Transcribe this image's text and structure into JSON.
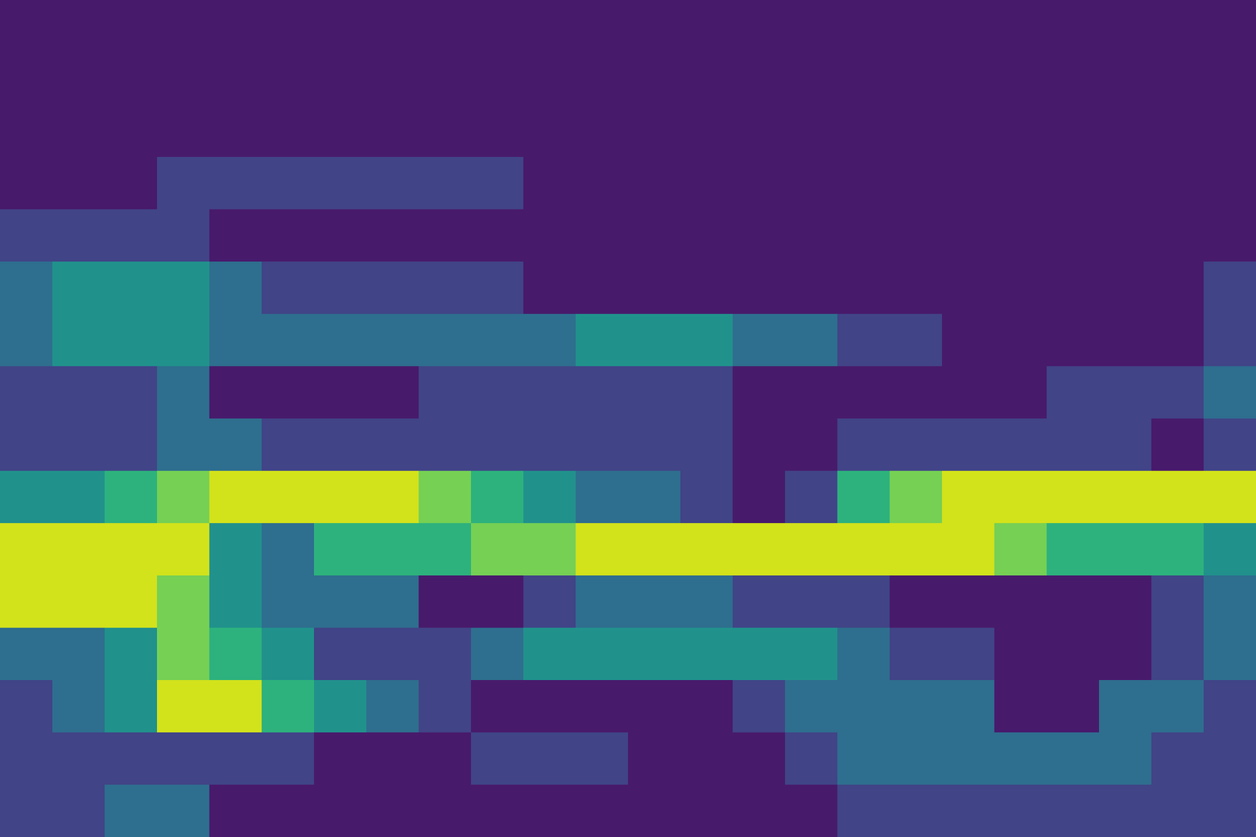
{
  "chart_data": {
    "type": "contour",
    "tick_labels": false,
    "levels": [
      0,
      1,
      2,
      3,
      4,
      5,
      6,
      7
    ],
    "colors": [
      "#481a6c",
      "#414487",
      "#2e6e8e",
      "#21918c",
      "#2db27d",
      "#75d054",
      "#d2e21b"
    ],
    "z": [
      [
        0,
        0,
        0,
        0,
        0,
        0,
        0,
        0,
        0,
        0,
        0,
        0,
        0,
        0,
        0,
        0,
        0,
        0,
        0,
        0,
        0,
        0,
        0,
        0
      ],
      [
        0,
        0,
        0,
        0,
        0,
        0,
        0,
        0,
        0,
        0,
        0,
        0,
        0,
        0,
        0,
        0,
        0,
        0,
        0,
        0,
        0,
        0,
        0,
        0
      ],
      [
        0,
        0,
        0,
        0,
        0,
        0,
        0,
        0,
        0,
        0,
        0,
        0,
        0,
        0,
        0,
        0,
        0,
        0,
        0,
        0,
        0,
        0,
        0,
        0
      ],
      [
        0,
        0,
        0,
        1,
        1,
        1,
        1,
        1,
        1,
        1,
        0,
        0,
        0,
        0,
        0,
        0,
        0,
        0,
        0,
        0,
        0,
        0,
        0,
        0
      ],
      [
        1,
        1,
        1,
        1,
        0,
        0,
        0,
        0,
        0,
        0,
        0,
        0,
        0,
        0,
        0,
        0,
        0,
        0,
        0,
        0,
        0,
        0,
        0,
        0
      ],
      [
        2,
        3,
        3,
        3,
        2,
        1,
        1,
        1,
        1,
        1,
        0,
        0,
        0,
        0,
        0,
        0,
        0,
        0,
        0,
        0,
        0,
        0,
        0,
        1
      ],
      [
        2,
        3,
        3,
        3,
        2,
        2,
        2,
        2,
        2,
        2,
        2,
        3,
        3,
        3,
        2,
        2,
        1,
        1,
        0,
        0,
        0,
        0,
        0,
        1
      ],
      [
        1,
        1,
        1,
        2,
        0,
        0,
        0,
        0,
        1,
        1,
        1,
        1,
        1,
        1,
        0,
        0,
        0,
        0,
        0,
        0,
        1,
        1,
        1,
        2
      ],
      [
        1,
        1,
        1,
        2,
        2,
        1,
        1,
        1,
        1,
        1,
        1,
        1,
        1,
        1,
        0,
        0,
        1,
        1,
        1,
        1,
        1,
        1,
        0,
        1
      ],
      [
        3,
        3,
        4,
        5,
        6,
        6,
        6,
        6,
        5,
        4,
        3,
        2,
        2,
        1,
        0,
        1,
        4,
        5,
        6,
        6,
        6,
        6,
        6,
        6
      ],
      [
        6,
        6,
        6,
        6,
        3,
        2,
        4,
        4,
        4,
        5,
        5,
        6,
        6,
        6,
        6,
        6,
        6,
        6,
        6,
        5,
        4,
        4,
        4,
        3
      ],
      [
        6,
        6,
        6,
        5,
        3,
        2,
        2,
        2,
        0,
        0,
        1,
        2,
        2,
        2,
        1,
        1,
        1,
        0,
        0,
        0,
        0,
        0,
        1,
        2
      ],
      [
        2,
        2,
        3,
        5,
        4,
        3,
        1,
        1,
        1,
        2,
        3,
        3,
        3,
        3,
        3,
        3,
        2,
        1,
        1,
        0,
        0,
        0,
        1,
        2
      ],
      [
        1,
        2,
        3,
        6,
        6,
        4,
        3,
        2,
        1,
        0,
        0,
        0,
        0,
        0,
        1,
        2,
        2,
        2,
        2,
        0,
        0,
        2,
        2,
        1
      ],
      [
        1,
        1,
        1,
        1,
        1,
        1,
        0,
        0,
        0,
        1,
        1,
        1,
        0,
        0,
        0,
        1,
        2,
        2,
        2,
        2,
        2,
        2,
        1,
        1
      ],
      [
        1,
        1,
        2,
        2,
        0,
        0,
        0,
        0,
        0,
        0,
        0,
        0,
        0,
        0,
        0,
        0,
        1,
        1,
        1,
        1,
        1,
        1,
        1,
        1
      ]
    ]
  }
}
